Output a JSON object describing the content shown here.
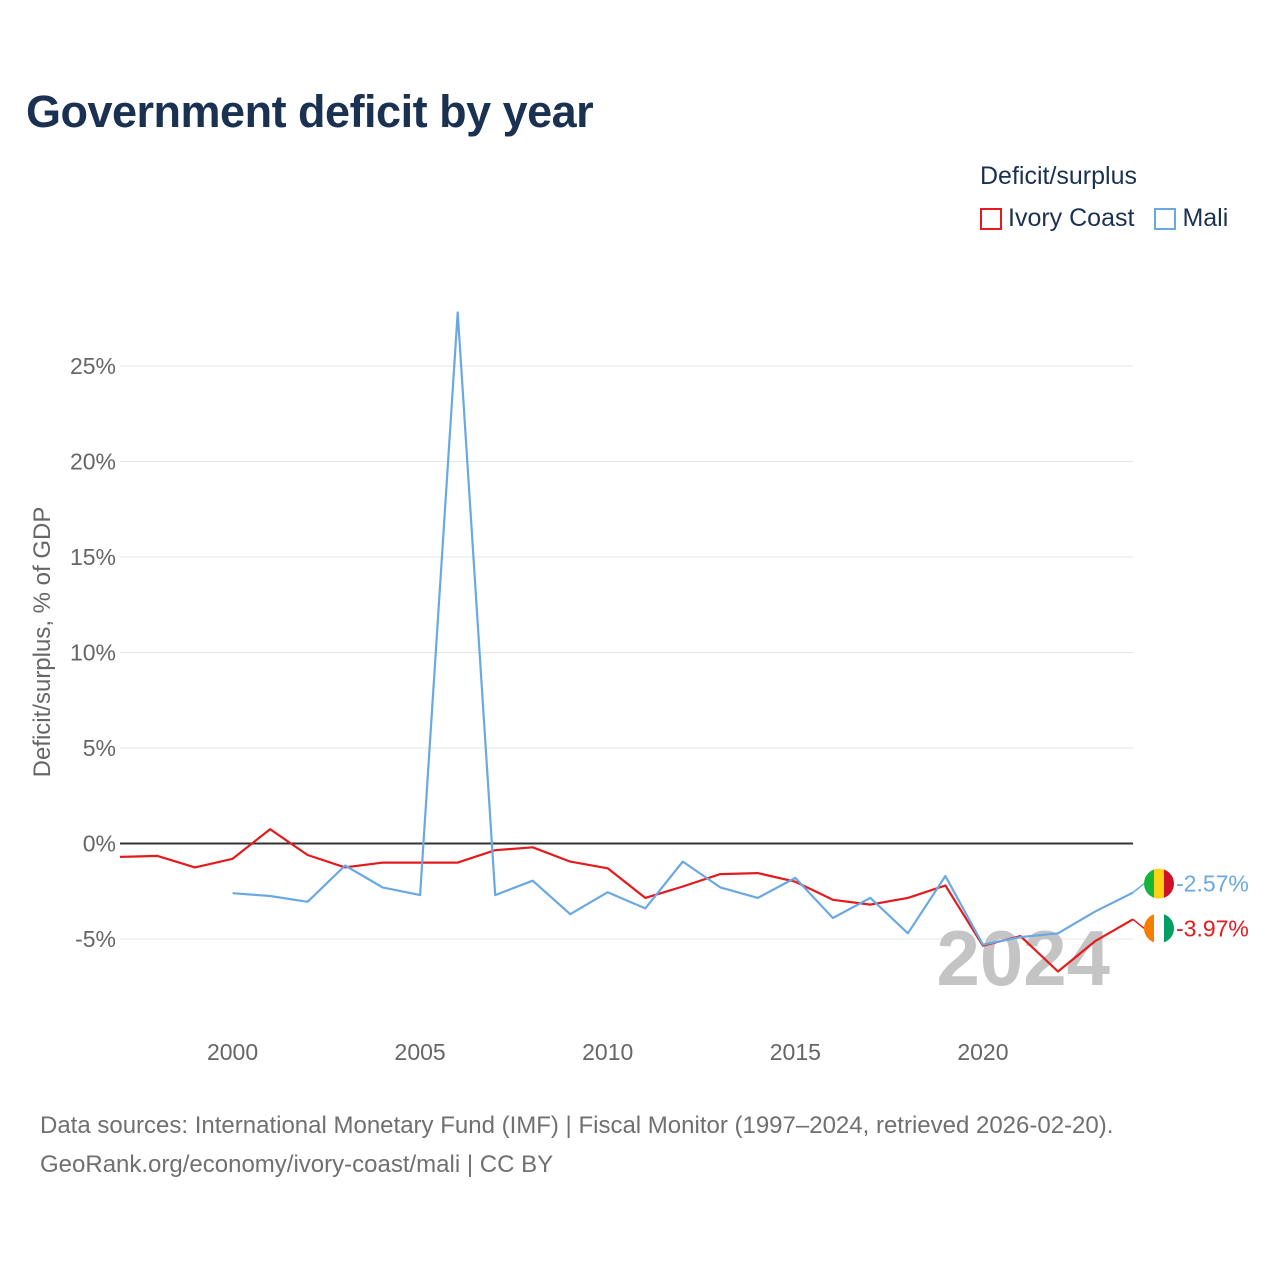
{
  "title": "Government deficit by year",
  "legend": {
    "title": "Deficit/surplus",
    "items": [
      {
        "label": "Ivory Coast",
        "color": "#e41a1c"
      },
      {
        "label": "Mali",
        "color": "#6aa8e2"
      }
    ]
  },
  "source": {
    "line1": "Data sources: International Monetary Fund (IMF) | Fiscal Monitor (1997–2024, retrieved 2026-02-20).",
    "line2": "GeoRank.org/economy/ivory-coast/mali | CC BY"
  },
  "chart_data": {
    "type": "line",
    "ylabel": "Deficit/surplus, % of GDP",
    "xlabel": "",
    "xlim": [
      1997,
      2024
    ],
    "ylim": [
      -8.5,
      29
    ],
    "x_ticks": [
      2000,
      2005,
      2010,
      2015,
      2020
    ],
    "y_ticks": [
      -5,
      0,
      5,
      10,
      15,
      20,
      25
    ],
    "y_tick_labels": [
      "-5%",
      "0%",
      "5%",
      "10%",
      "15%",
      "20%",
      "25%"
    ],
    "zero_line": true,
    "watermark_year": "2024",
    "series": [
      {
        "name": "Ivory Coast",
        "color": "#e41a1c",
        "x": [
          1997,
          1998,
          1999,
          2000,
          2001,
          2002,
          2003,
          2004,
          2005,
          2006,
          2007,
          2008,
          2009,
          2010,
          2011,
          2012,
          2013,
          2014,
          2015,
          2016,
          2017,
          2018,
          2019,
          2020,
          2021,
          2022,
          2023,
          2024
        ],
        "values": [
          -0.7,
          -0.65,
          -1.25,
          -0.8,
          0.75,
          -0.6,
          -1.25,
          -1.0,
          -1.0,
          -1.0,
          -0.35,
          -0.2,
          -0.95,
          -1.3,
          -2.85,
          -2.25,
          -1.6,
          -1.55,
          -2.0,
          -2.95,
          -3.2,
          -2.85,
          -2.2,
          -5.35,
          -4.85,
          -6.7,
          -5.1,
          -3.97
        ],
        "end_label": "-3.97%"
      },
      {
        "name": "Mali",
        "color": "#6aa8e2",
        "x": [
          2000,
          2001,
          2002,
          2003,
          2004,
          2005,
          2006,
          2007,
          2008,
          2009,
          2010,
          2011,
          2012,
          2013,
          2014,
          2015,
          2016,
          2017,
          2018,
          2019,
          2020,
          2021,
          2022,
          2023,
          2024
        ],
        "values": [
          -2.6,
          -2.75,
          -3.05,
          -1.15,
          -2.3,
          -2.7,
          27.8,
          -2.7,
          -1.95,
          -3.7,
          -2.55,
          -3.4,
          -0.95,
          -2.3,
          -2.85,
          -1.8,
          -3.9,
          -2.85,
          -4.7,
          -1.7,
          -5.3,
          -4.9,
          -4.7,
          -3.55,
          -2.57
        ],
        "end_label": "-2.57%"
      }
    ]
  }
}
